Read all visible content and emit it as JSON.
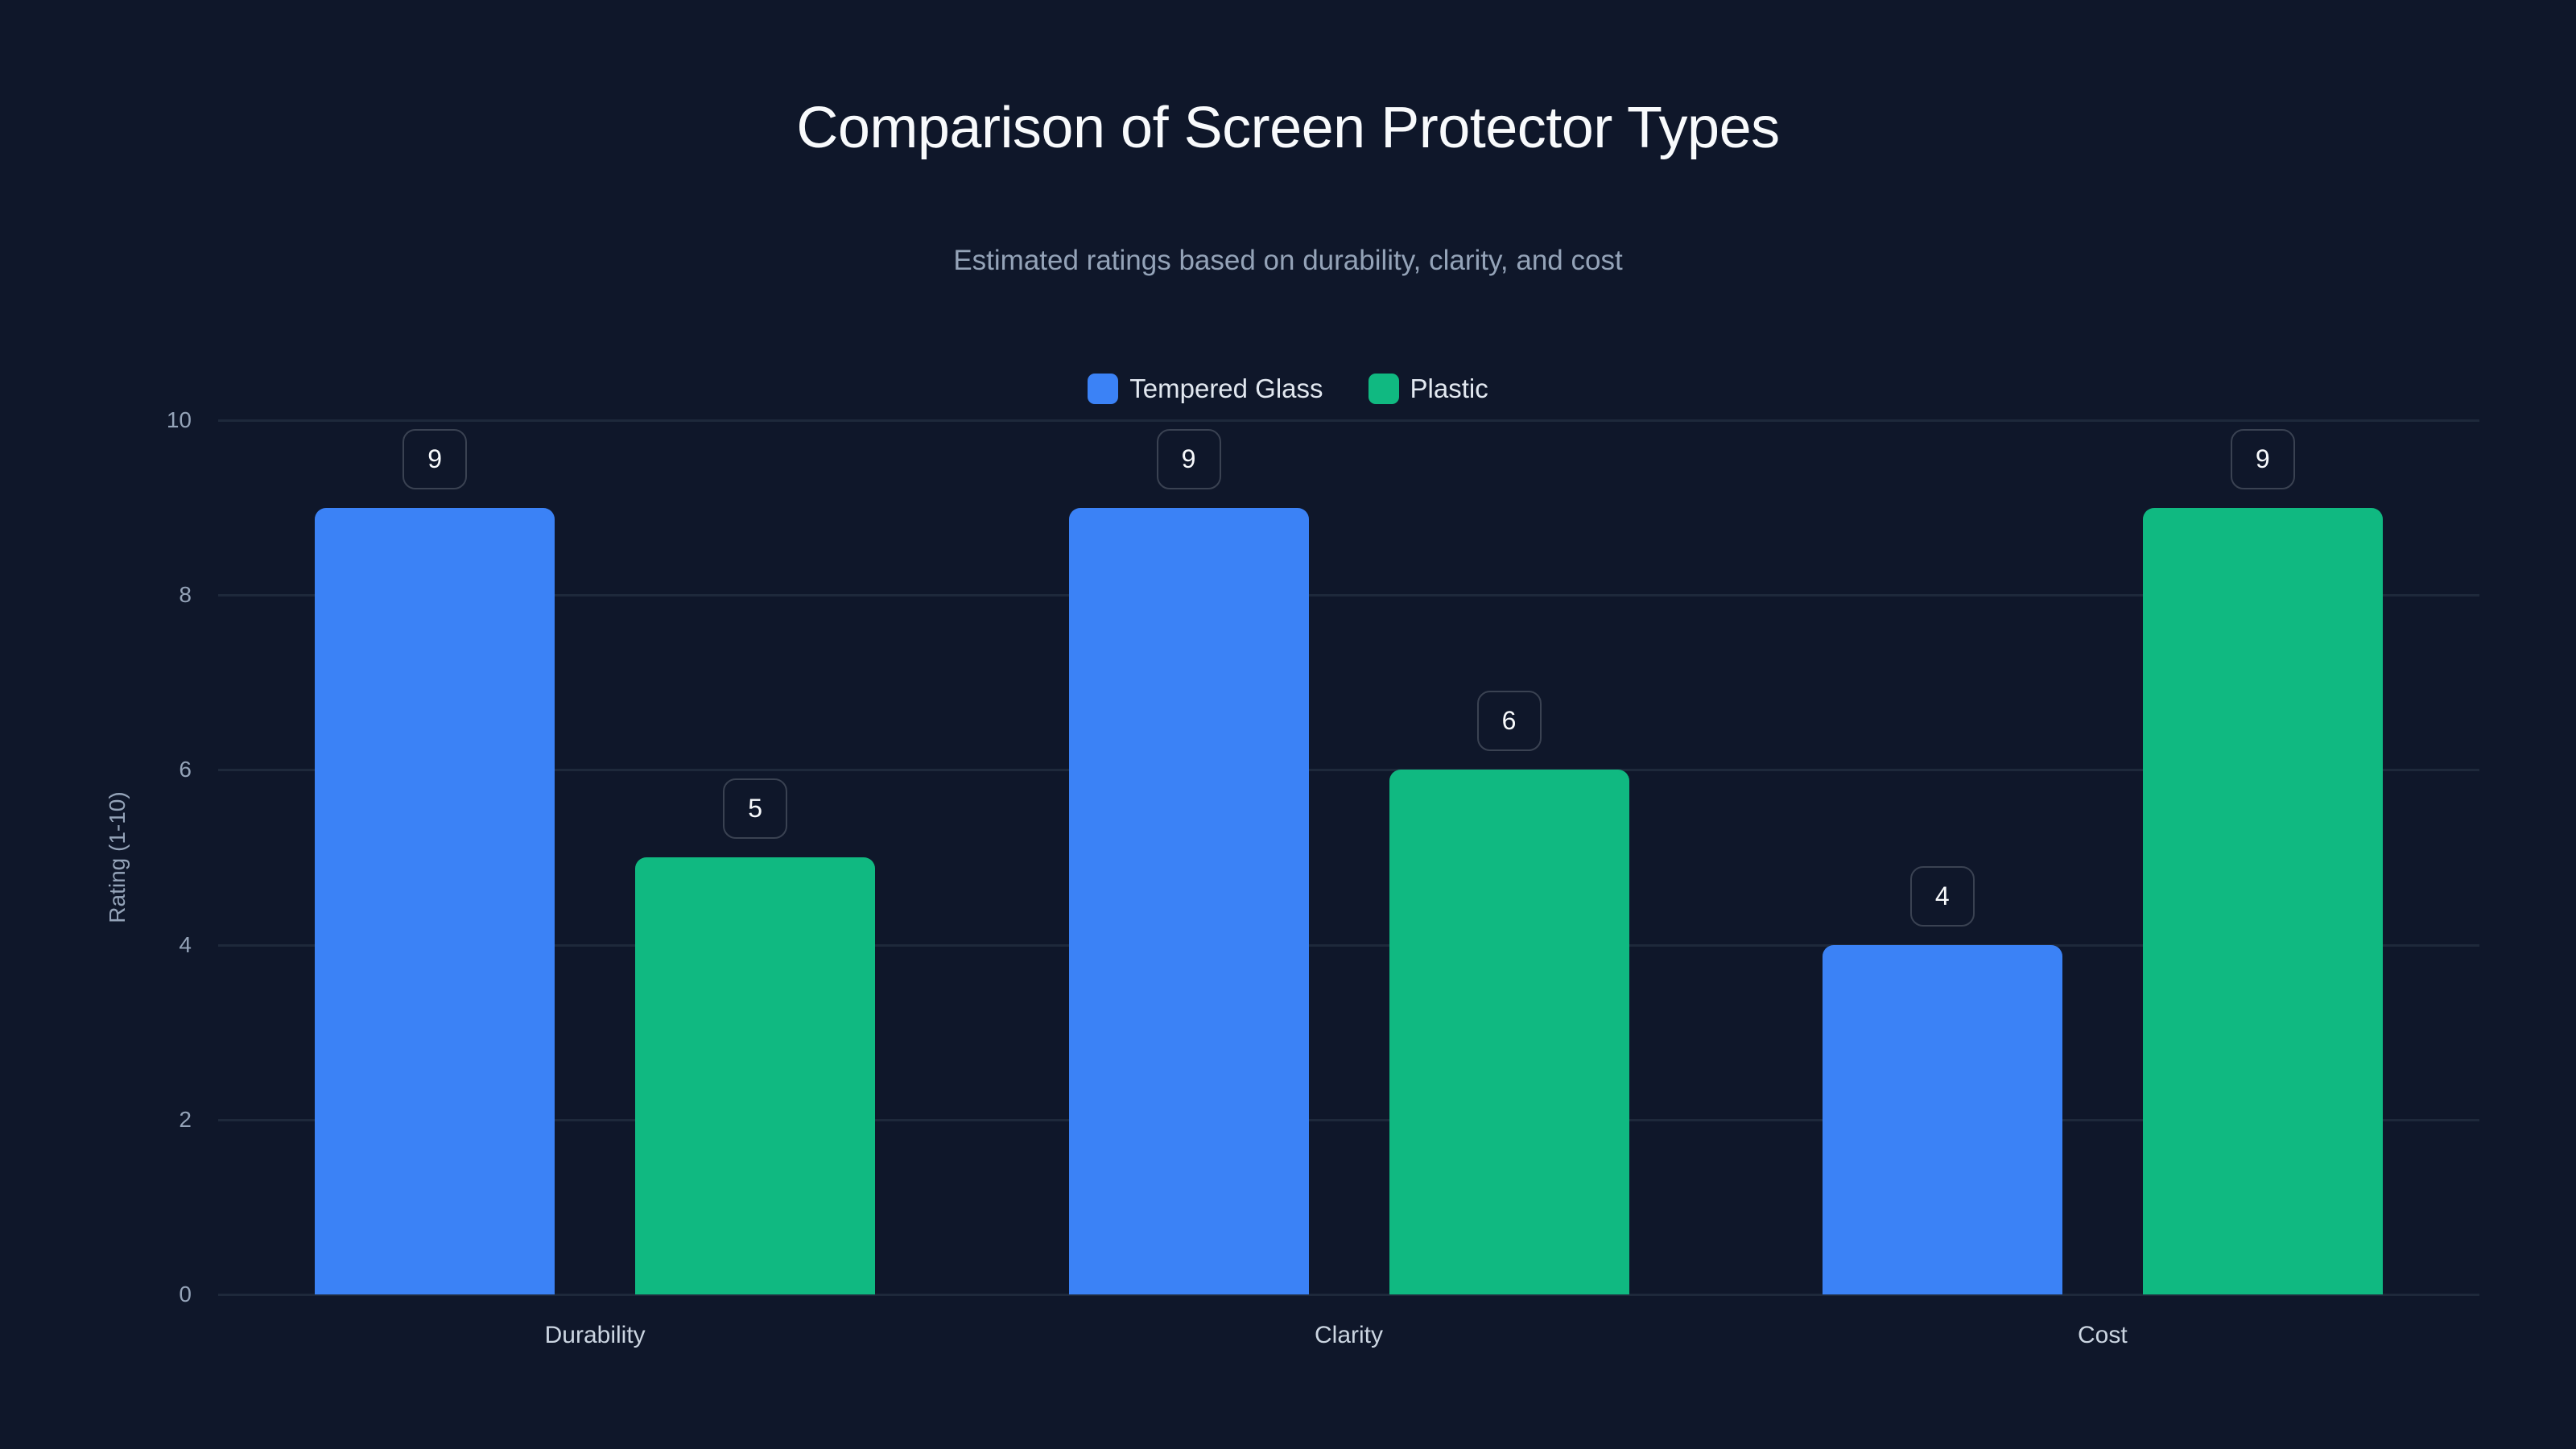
{
  "chart_data": {
    "type": "bar",
    "title": "Comparison of Screen Protector Types",
    "subtitle": "Estimated ratings based on durability, clarity, and cost",
    "categories": [
      "Durability",
      "Clarity",
      "Cost"
    ],
    "series": [
      {
        "name": "Tempered Glass",
        "color": "#3b82f6",
        "values": [
          9,
          9,
          4
        ]
      },
      {
        "name": "Plastic",
        "color": "#10b981",
        "values": [
          5,
          6,
          9
        ]
      }
    ],
    "xlabel": "",
    "ylabel": "Rating (1-10)",
    "ylim": [
      0,
      10
    ],
    "yticks": [
      0,
      2,
      4,
      6,
      8,
      10
    ],
    "grid": true,
    "legend_position": "top-center",
    "data_labels": true
  },
  "colors": {
    "background": "#0f172a",
    "gridline": "#1e293b",
    "tick_text": "#94a3b8",
    "title_text": "#f8fafc"
  }
}
